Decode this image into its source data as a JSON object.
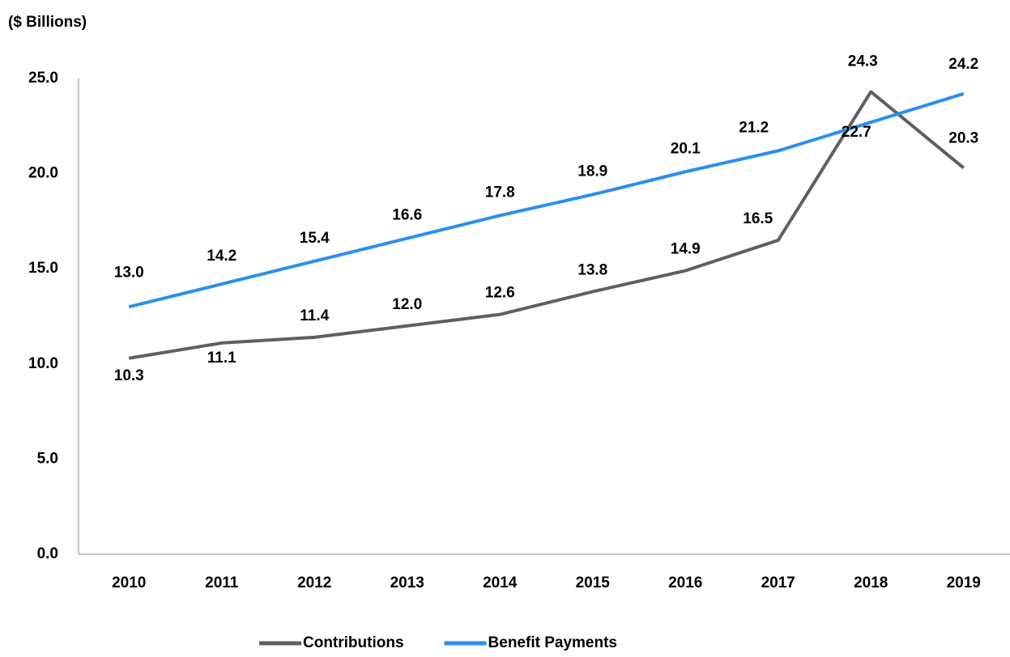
{
  "chart_data": {
    "type": "line",
    "y_label": "($ Billions)",
    "categories": [
      "2010",
      "2011",
      "2012",
      "2013",
      "2014",
      "2015",
      "2016",
      "2017",
      "2018",
      "2019"
    ],
    "series": [
      {
        "name": "Contributions",
        "color": "#5f5f5f",
        "values": [
          10.3,
          11.1,
          11.4,
          12.0,
          12.6,
          13.8,
          14.9,
          16.5,
          24.3,
          20.3
        ],
        "value_labels": [
          "10.3",
          "11.1",
          "11.4",
          "12.0",
          "12.6",
          "13.8",
          "14.9",
          "16.5",
          "24.3",
          "20.3"
        ]
      },
      {
        "name": "Benefit Payments",
        "color": "#2b8ef0",
        "values": [
          13.0,
          14.2,
          15.4,
          16.6,
          17.8,
          18.9,
          20.1,
          21.2,
          22.7,
          24.2
        ],
        "value_labels": [
          "13.0",
          "14.2",
          "15.4",
          "16.6",
          "17.8",
          "18.9",
          "20.1",
          "21.2",
          "22.7",
          "24.2"
        ]
      }
    ],
    "ylim": [
      0,
      25
    ],
    "yticks": [
      {
        "value": 0,
        "label": "0.0"
      },
      {
        "value": 5,
        "label": "5.0"
      },
      {
        "value": 10,
        "label": "10.0"
      },
      {
        "value": 15,
        "label": "15.0"
      },
      {
        "value": 20,
        "label": "20.0"
      },
      {
        "value": 25,
        "label": "25.0"
      }
    ],
    "grid": false,
    "legend": "bottom"
  }
}
